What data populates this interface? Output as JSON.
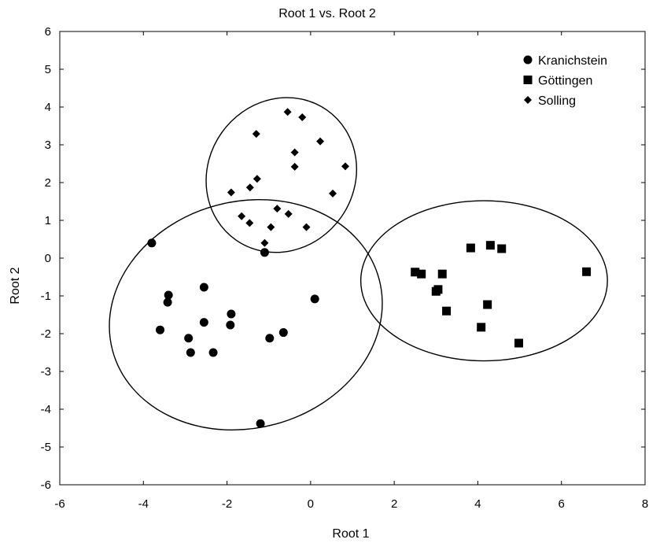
{
  "chart_data": {
    "type": "scatter",
    "title": "Root 1 vs. Root 2",
    "xlabel": "Root 1",
    "ylabel": "Root 2",
    "xlim": [
      -6,
      8
    ],
    "ylim": [
      -6,
      6
    ],
    "xticks": [
      -6,
      -4,
      -2,
      0,
      2,
      4,
      6,
      8
    ],
    "yticks": [
      -6,
      -5,
      -4,
      -3,
      -2,
      -1,
      0,
      1,
      2,
      3,
      4,
      5,
      6
    ],
    "grid": false,
    "legend_position": "top-right",
    "series": [
      {
        "name": "Kranichstein",
        "marker": "circle",
        "points": [
          [
            -3.8,
            0.4
          ],
          [
            -1.1,
            0.15
          ],
          [
            0.1,
            -1.08
          ],
          [
            -2.55,
            -0.77
          ],
          [
            -3.4,
            -0.98
          ],
          [
            -3.42,
            -1.17
          ],
          [
            -1.9,
            -1.48
          ],
          [
            -3.6,
            -1.9
          ],
          [
            -2.55,
            -1.7
          ],
          [
            -1.92,
            -1.77
          ],
          [
            -0.65,
            -1.97
          ],
          [
            -2.92,
            -2.12
          ],
          [
            -0.98,
            -2.12
          ],
          [
            -2.87,
            -2.5
          ],
          [
            -2.33,
            -2.5
          ],
          [
            -1.2,
            -4.38
          ]
        ]
      },
      {
        "name": "Göttingen",
        "marker": "square",
        "points": [
          [
            4.3,
            0.34
          ],
          [
            3.83,
            0.27
          ],
          [
            4.57,
            0.25
          ],
          [
            2.5,
            -0.37
          ],
          [
            2.65,
            -0.42
          ],
          [
            3.15,
            -0.42
          ],
          [
            6.6,
            -0.36
          ],
          [
            3.05,
            -0.83
          ],
          [
            3.0,
            -0.88
          ],
          [
            4.23,
            -1.23
          ],
          [
            3.25,
            -1.4
          ],
          [
            4.08,
            -1.83
          ],
          [
            4.98,
            -2.25
          ]
        ]
      },
      {
        "name": "Solling",
        "marker": "diamond",
        "points": [
          [
            -0.55,
            3.87
          ],
          [
            -0.2,
            3.73
          ],
          [
            -1.3,
            3.29
          ],
          [
            0.23,
            3.09
          ],
          [
            -0.38,
            2.8
          ],
          [
            0.83,
            2.43
          ],
          [
            -0.38,
            2.42
          ],
          [
            -1.28,
            2.1
          ],
          [
            -1.45,
            1.87
          ],
          [
            -1.9,
            1.74
          ],
          [
            0.53,
            1.71
          ],
          [
            -0.8,
            1.31
          ],
          [
            -0.53,
            1.17
          ],
          [
            -1.65,
            1.11
          ],
          [
            -1.46,
            0.93
          ],
          [
            -0.95,
            0.82
          ],
          [
            -0.1,
            0.82
          ],
          [
            -1.1,
            0.4
          ]
        ]
      }
    ],
    "ellipses": [
      {
        "name": "kranichstein-ellipse",
        "cx": -1.55,
        "cy": -1.5,
        "rx": 3.3,
        "ry": 3.0,
        "rotation_deg": -15
      },
      {
        "name": "solling-ellipse",
        "cx": -0.7,
        "cy": 2.2,
        "rx": 1.75,
        "ry": 2.1,
        "rotation_deg": 35
      },
      {
        "name": "gottingen-ellipse",
        "cx": 4.15,
        "cy": -0.6,
        "rx": 2.95,
        "ry": 2.12,
        "rotation_deg": 0
      }
    ]
  }
}
